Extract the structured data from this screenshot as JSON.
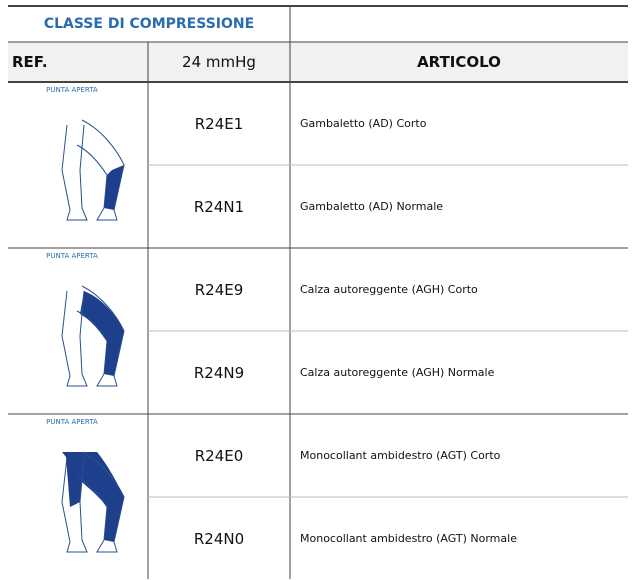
{
  "header": {
    "title": "CLASSE DI COMPRESSIONE",
    "columns": [
      "REF.",
      "24 mmHg",
      "ARTICOLO"
    ]
  },
  "groups": [
    {
      "label": "PUNTA APERTA",
      "rows": [
        {
          "code": "R24E1",
          "article": "Gambaletto (AD) Corto"
        },
        {
          "code": "R24N1",
          "article": "Gambaletto (AD) Normale"
        }
      ]
    },
    {
      "label": "PUNTA APERTA",
      "rows": [
        {
          "code": "R24E9",
          "article": "Calza autoreggente (AGH) Corto"
        },
        {
          "code": "R24N9",
          "article": "Calza autoreggente (AGH) Normale"
        }
      ]
    },
    {
      "label": "PUNTA APERTA",
      "rows": [
        {
          "code": "R24E0",
          "article": "Monocollant ambidestro (AGT) Corto"
        },
        {
          "code": "R24N0",
          "article": "Monocollant ambidestro (AGT) Normale"
        }
      ]
    }
  ]
}
